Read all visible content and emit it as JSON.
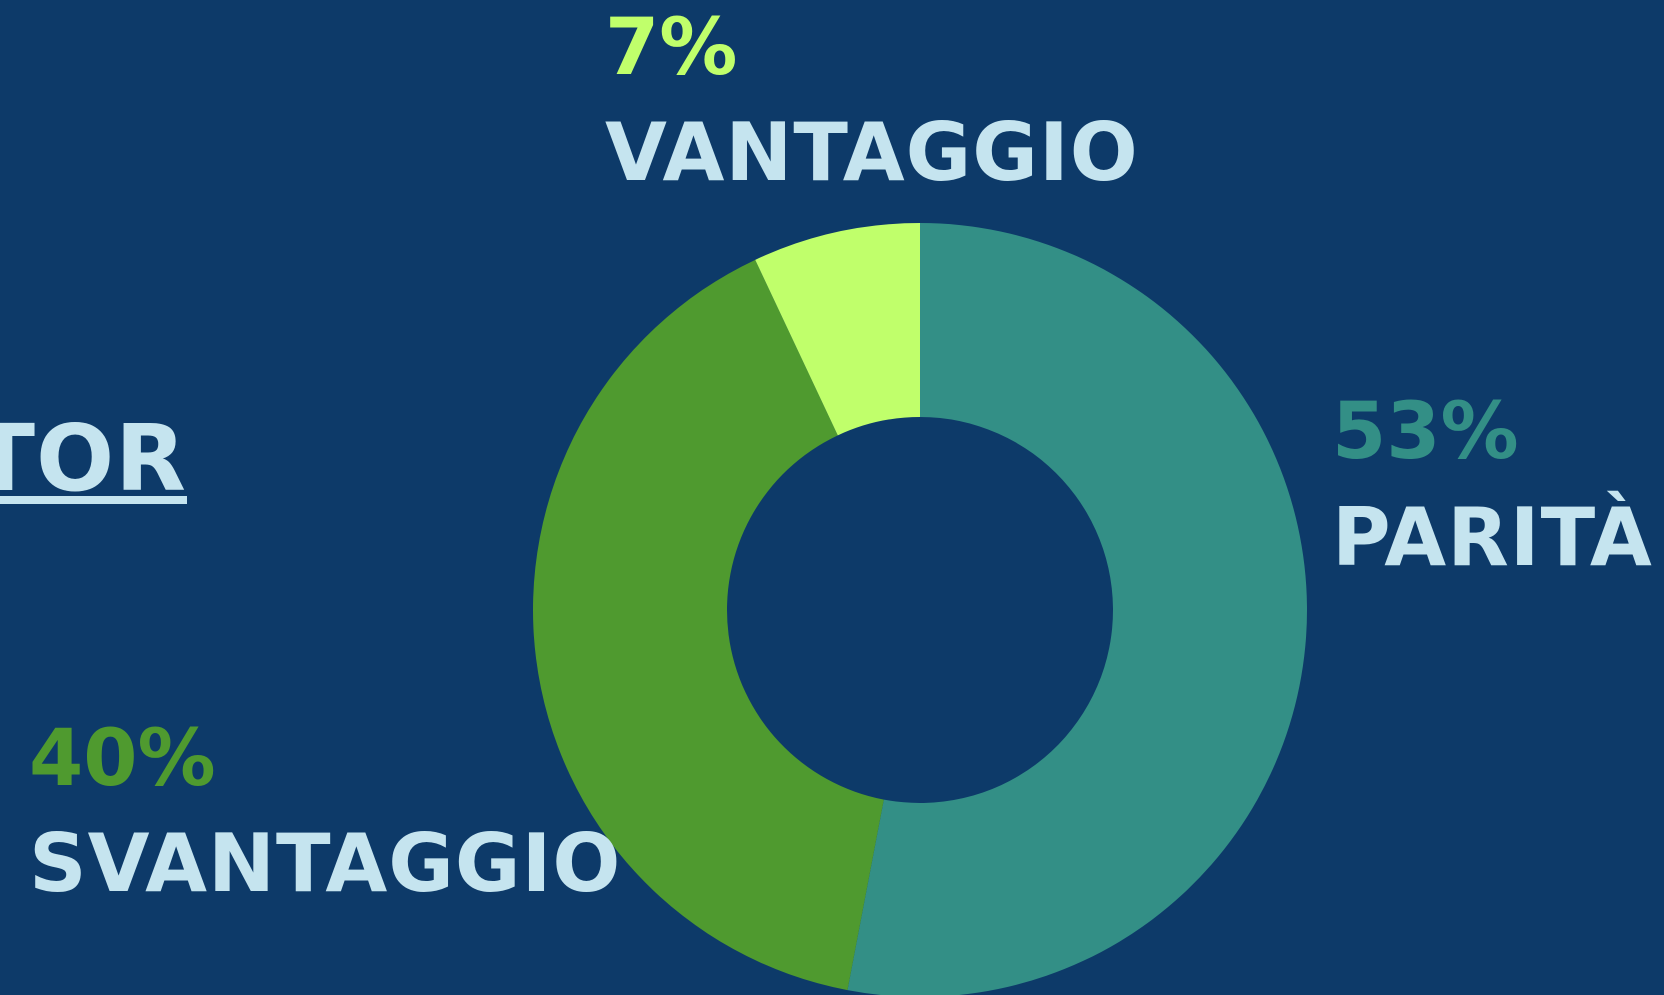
{
  "heading": "TOR",
  "chart_data": {
    "type": "pie",
    "donut": true,
    "categories": [
      "PARITÀ",
      "SVANTAGGIO",
      "VANTAGGIO"
    ],
    "values": [
      53,
      40,
      7
    ],
    "value_labels": [
      "53%",
      "40%",
      "7%"
    ],
    "colors": [
      "#338f86",
      "#4f9a2f",
      "#c0ff6b"
    ]
  }
}
